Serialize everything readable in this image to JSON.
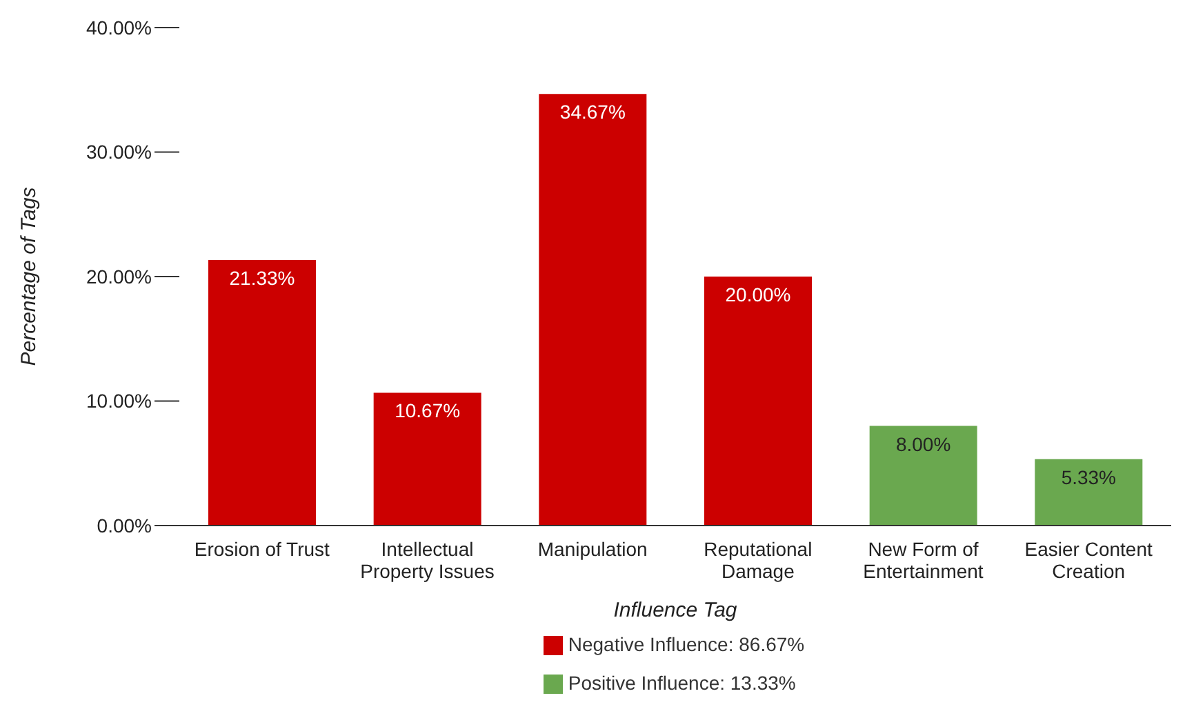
{
  "chart_data": {
    "type": "bar",
    "xlabel": "Influence Tag",
    "ylabel": "Percentage of Tags",
    "categories": [
      "Erosion of Trust",
      "Intellectual Property Issues",
      "Manipulation",
      "Reputational Damage",
      "New Form of Entertainment",
      "Easier Content Creation"
    ],
    "stacked": true,
    "series": [
      {
        "name": "Negative Influence: 86.67%",
        "color": "#cc0000",
        "values": [
          21.33,
          10.67,
          34.67,
          20.0,
          null,
          null
        ],
        "value_labels": [
          "21.33%",
          "10.67%",
          "34.67%",
          "20.00%",
          null,
          null
        ]
      },
      {
        "name": "Positive Influence: 13.33%",
        "color": "#6aa84f",
        "values": [
          null,
          null,
          null,
          null,
          8.0,
          5.33
        ],
        "value_labels": [
          null,
          null,
          null,
          null,
          "8.00%",
          "5.33%"
        ]
      }
    ],
    "ylim": [
      0,
      40
    ],
    "yticks": [
      {
        "value": 0,
        "label": "0.00%"
      },
      {
        "value": 10,
        "label": "10.00%"
      },
      {
        "value": 20,
        "label": "20.00%"
      },
      {
        "value": 30,
        "label": "30.00%"
      },
      {
        "value": 40,
        "label": "40.00%"
      }
    ],
    "grid": false,
    "legend": "bottom"
  }
}
